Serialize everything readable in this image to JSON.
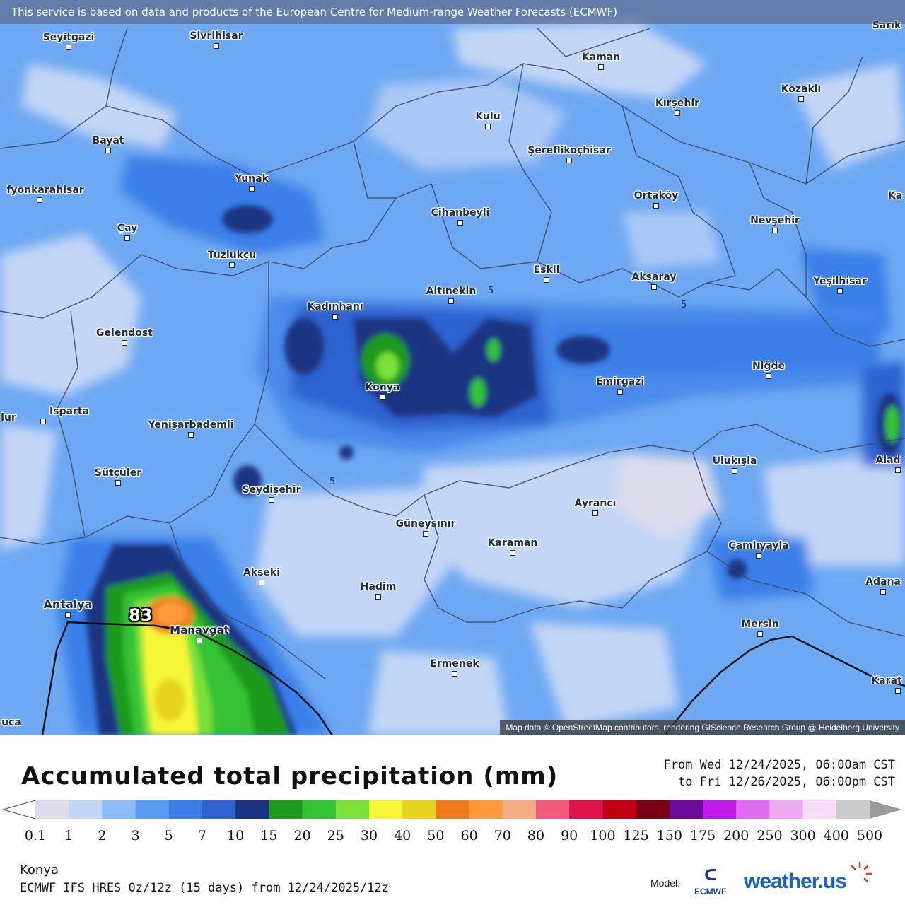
{
  "attribution_top": "This service is based on data and products of the European Centre for Medium-range Weather Forecasts (ECMWF)",
  "attribution_bottom": "Map data © OpenStreetMap contributors, rendering GIScience Research Group @ Heidelberg University",
  "map": {
    "cities": [
      {
        "name": "Seyitgazi"
      },
      {
        "name": "Sivrihisar"
      },
      {
        "name": "Kaman"
      },
      {
        "name": "Kozaklı"
      },
      {
        "name": "Kırşehir"
      },
      {
        "name": "Kulu"
      },
      {
        "name": "Şereflikoçhisar"
      },
      {
        "name": "Bayat"
      },
      {
        "name": "Yunak"
      },
      {
        "name": "Ortaköy"
      },
      {
        "name": "fyonkarahisar"
      },
      {
        "name": "Cihanbeyli"
      },
      {
        "name": "Nevşehir"
      },
      {
        "name": "Çay"
      },
      {
        "name": "Tuzlukçu"
      },
      {
        "name": "Eskil"
      },
      {
        "name": "Aksaray"
      },
      {
        "name": "Altınekin"
      },
      {
        "name": "Yeşilhisar"
      },
      {
        "name": "Kadınhanı"
      },
      {
        "name": "Gelendost"
      },
      {
        "name": "Niğde"
      },
      {
        "name": "Konya"
      },
      {
        "name": "Emirgazi"
      },
      {
        "name": "Isparta"
      },
      {
        "name": "Yenişarbademli"
      },
      {
        "name": "Ulukışla"
      },
      {
        "name": "Sütçüler"
      },
      {
        "name": "Seydişehir"
      },
      {
        "name": "Ayrancı"
      },
      {
        "name": "Güneysınır"
      },
      {
        "name": "Karaman"
      },
      {
        "name": "Çamlıyayla"
      },
      {
        "name": "Akseki"
      },
      {
        "name": "Hadim"
      },
      {
        "name": "Antalya"
      },
      {
        "name": "Manavgat"
      },
      {
        "name": "Mersin"
      },
      {
        "name": "Ermenek"
      },
      {
        "name": "Adana"
      },
      {
        "name": "Alad"
      },
      {
        "name": "Karat"
      },
      {
        "name": "Sarık"
      },
      {
        "name": "Ka"
      },
      {
        "name": "lur"
      },
      {
        "name": "uca"
      }
    ],
    "contour_labels": [
      "5",
      "5",
      "5"
    ],
    "max_value_label": "83"
  },
  "legend": {
    "title": "Accumulated total precipitation (mm)",
    "from": "From Wed 12/24/2025, 06:00am CST",
    "to": "to Fri 12/26/2025, 06:00pm CST",
    "ticks": [
      "0.1",
      "1",
      "2",
      "3",
      "5",
      "7",
      "10",
      "15",
      "20",
      "25",
      "30",
      "40",
      "50",
      "60",
      "70",
      "80",
      "90",
      "100",
      "125",
      "150",
      "175",
      "200",
      "250",
      "300",
      "400",
      "500"
    ],
    "colors": [
      "#dcdcec",
      "#c3d6f6",
      "#8cbcf7",
      "#5a9cf1",
      "#3a7fe8",
      "#2f62cf",
      "#1c3482",
      "#1e9a1e",
      "#35c235",
      "#7ae03a",
      "#f6f637",
      "#e6d31c",
      "#f07b1a",
      "#ff9a3c",
      "#f4aa82",
      "#f35a7a",
      "#e0144c",
      "#c00010",
      "#7a0014",
      "#6a0a9a",
      "#c21aea",
      "#e06cf0",
      "#eeaaf0",
      "#f6dcf6",
      "#cacaca"
    ],
    "location": "Konya",
    "model_line": "ECMWF IFS HRES 0z/12z (15 days) from 12/24/2025/12z",
    "model_label": "Model:",
    "ecmwf_label": "ECMWF",
    "brand": "weather.us"
  }
}
